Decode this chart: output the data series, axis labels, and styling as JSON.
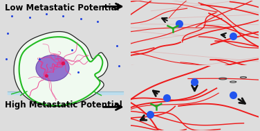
{
  "left_panel": {
    "bg": "#ffffff",
    "label_top": "Low Metastatic Potential",
    "label_bottom": "High Metastatic Potential",
    "cell_outline_color": "#333333",
    "cell_fill": "#ffffff",
    "membrane_color": "#22bb22",
    "nucleus_fill": "#8866cc",
    "nucleus_edge": "#6644aa",
    "actin_color": "#ee3388",
    "dot_color": "#2244dd",
    "surface_color": "#bbddee",
    "label_fontsize": 8.5,
    "arrow_color": "#000000"
  },
  "top_right_panel": {
    "bg": "#f2c8cc",
    "fiber_color": "#ee1111",
    "thin_fiber_color": "#cc8888",
    "dot_color": "#2255ee",
    "motor_color": "#22aa22",
    "arrow_color": "#111111"
  },
  "bottom_right_panel": {
    "bg": "#dde8bb",
    "fiber_color": "#ee1111",
    "dot_color": "#2255ee",
    "motor_color": "#22aa22",
    "arrow_color": "#111111"
  }
}
